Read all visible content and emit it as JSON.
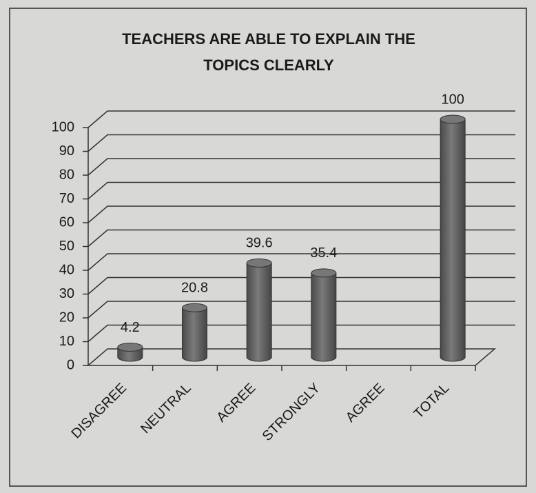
{
  "chart_data": {
    "type": "bar3d",
    "title": "TEACHERS ARE ABLE TO EXPLAIN THE TOPICS CLEARLY",
    "categories": [
      "DISAGREE",
      "NEUTRAL",
      "AGREE",
      "STRONGLY",
      "AGREE",
      "TOTAL"
    ],
    "values": [
      4.2,
      20.8,
      39.6,
      35.4,
      null,
      100
    ],
    "color": "#6e6e6e",
    "ylim": [
      0,
      100
    ],
    "yticks": [
      0,
      10,
      20,
      30,
      40,
      50,
      60,
      70,
      80,
      90,
      100
    ],
    "grid": true
  }
}
